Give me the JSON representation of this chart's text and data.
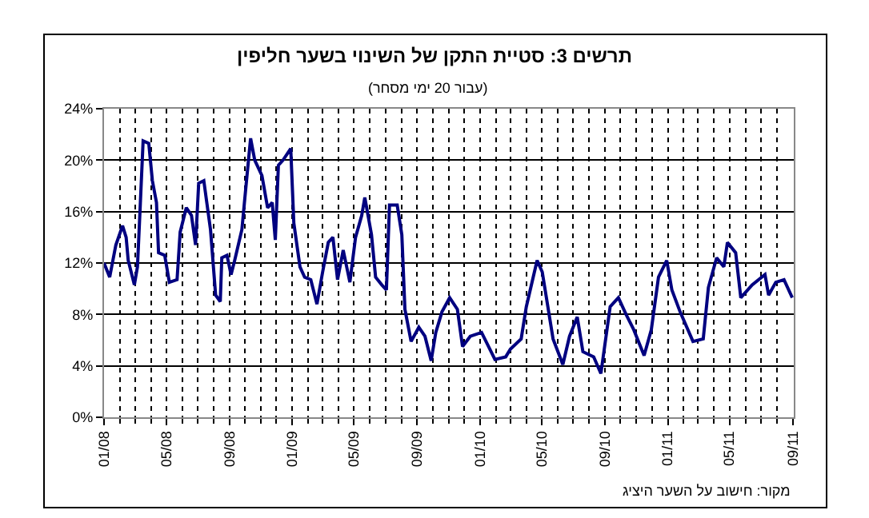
{
  "chart_data": {
    "type": "line",
    "title": "תרשים 3: סטיית התקן של השינוי בשער חליפין",
    "subtitle": "(עבור 20 ימי מסחר)",
    "annotations": [
      "מקור: חישוב על השער היציג"
    ],
    "x": [
      "2008-01-01",
      "2008-01-12",
      "2008-01-24",
      "2008-02-06",
      "2008-02-13",
      "2008-02-17",
      "2008-02-29",
      "2008-03-06",
      "2008-03-11",
      "2008-03-17",
      "2008-03-28",
      "2008-04-04",
      "2008-04-12",
      "2008-04-16",
      "2008-04-28",
      "2008-05-07",
      "2008-05-22",
      "2008-05-28",
      "2008-06-09",
      "2008-06-19",
      "2008-06-27",
      "2008-07-03",
      "2008-07-13",
      "2008-07-26",
      "2008-08-05",
      "2008-08-14",
      "2008-08-17",
      "2008-08-27",
      "2008-09-04",
      "2008-09-11",
      "2008-09-25",
      "2008-10-04",
      "2008-10-12",
      "2008-10-20",
      "2008-11-03",
      "2008-11-14",
      "2008-11-23",
      "2008-11-29",
      "2008-12-05",
      "2008-12-14",
      "2008-12-29",
      "2009-01-04",
      "2009-01-16",
      "2009-01-25",
      "2009-02-06",
      "2009-02-18",
      "2009-03-01",
      "2009-03-12",
      "2009-03-21",
      "2009-03-30",
      "2009-04-10",
      "2009-04-23",
      "2009-05-04",
      "2009-05-16",
      "2009-05-22",
      "2009-06-04",
      "2009-06-12",
      "2009-06-24",
      "2009-07-03",
      "2009-07-09",
      "2009-07-24",
      "2009-08-02",
      "2009-08-08",
      "2009-08-20",
      "2009-09-04",
      "2009-09-16",
      "2009-09-28",
      "2009-10-07",
      "2009-10-19",
      "2009-11-03",
      "2009-11-18",
      "2009-11-28",
      "2009-12-13",
      "2010-01-04",
      "2010-01-30",
      "2010-02-20",
      "2010-03-01",
      "2010-03-22",
      "2010-04-01",
      "2010-04-22",
      "2010-05-02",
      "2010-05-23",
      "2010-06-11",
      "2010-06-24",
      "2010-07-09",
      "2010-07-20",
      "2010-08-10",
      "2010-08-24",
      "2010-09-11",
      "2010-09-27",
      "2010-10-12",
      "2010-10-27",
      "2010-11-16",
      "2010-11-30",
      "2010-12-14",
      "2010-12-30",
      "2011-01-09",
      "2011-01-25",
      "2011-02-19",
      "2011-03-11",
      "2011-03-21",
      "2011-04-06",
      "2011-04-20",
      "2011-04-27",
      "2011-05-13",
      "2011-05-23",
      "2011-06-14",
      "2011-07-09",
      "2011-07-16",
      "2011-07-30",
      "2011-08-15",
      "2011-08-31"
    ],
    "series": [
      {
        "color": "#000080",
        "values": [
          12.0,
          10.9,
          13.4,
          14.9,
          14.0,
          12.2,
          10.3,
          11.7,
          16.1,
          21.5,
          21.3,
          18.4,
          16.7,
          12.8,
          12.6,
          10.5,
          10.7,
          14.4,
          16.3,
          15.7,
          13.4,
          18.2,
          18.4,
          14.6,
          9.5,
          9.0,
          12.4,
          12.6,
          11.1,
          12.2,
          14.6,
          18.4,
          21.7,
          20.0,
          18.8,
          16.3,
          16.7,
          13.8,
          19.6,
          20.0,
          20.9,
          15.1,
          11.7,
          10.9,
          10.7,
          8.8,
          11.3,
          13.6,
          14.0,
          10.7,
          13.0,
          10.5,
          14.0,
          15.7,
          17.1,
          14.2,
          10.9,
          10.3,
          9.9,
          16.5,
          16.5,
          14.2,
          8.4,
          5.9,
          7.0,
          6.3,
          4.4,
          6.6,
          8.2,
          9.3,
          8.4,
          5.5,
          6.3,
          6.6,
          4.5,
          4.7,
          5.3,
          6.1,
          8.6,
          12.2,
          11.3,
          6.1,
          4.1,
          6.3,
          7.8,
          5.1,
          4.7,
          3.4,
          8.6,
          9.3,
          8.0,
          6.8,
          4.8,
          6.8,
          10.9,
          12.2,
          9.9,
          8.2,
          5.9,
          6.1,
          10.1,
          12.4,
          11.7,
          13.6,
          12.8,
          9.3,
          10.3,
          11.1,
          9.5,
          10.5,
          10.7,
          9.3
        ]
      }
    ],
    "xlim": [
      "2008-01-01",
      "2011-09-03"
    ],
    "xticks": [
      {
        "value": "2008-01-01",
        "label": "01/08"
      },
      {
        "value": "2008-05-01",
        "label": "05/08"
      },
      {
        "value": "2008-09-01",
        "label": "09/08"
      },
      {
        "value": "2009-01-01",
        "label": "01/09"
      },
      {
        "value": "2009-05-01",
        "label": "05/09"
      },
      {
        "value": "2009-09-01",
        "label": "09/09"
      },
      {
        "value": "2010-01-01",
        "label": "01/10"
      },
      {
        "value": "2010-05-01",
        "label": "05/10"
      },
      {
        "value": "2010-09-01",
        "label": "09/10"
      },
      {
        "value": "2011-01-01",
        "label": "01/11"
      },
      {
        "value": "2011-05-01",
        "label": "05/11"
      },
      {
        "value": "2011-09-01",
        "label": "09/11"
      }
    ],
    "ylim": [
      0,
      24
    ],
    "yticks": [
      {
        "value": 0,
        "label": "0%"
      },
      {
        "value": 4,
        "label": "4%"
      },
      {
        "value": 8,
        "label": "8%"
      },
      {
        "value": 12,
        "label": "12%"
      },
      {
        "value": 16,
        "label": "16%"
      },
      {
        "value": 20,
        "label": "20%"
      },
      {
        "value": 24,
        "label": "24%"
      }
    ],
    "grid": true,
    "marker": "none",
    "line_style": "solid"
  }
}
